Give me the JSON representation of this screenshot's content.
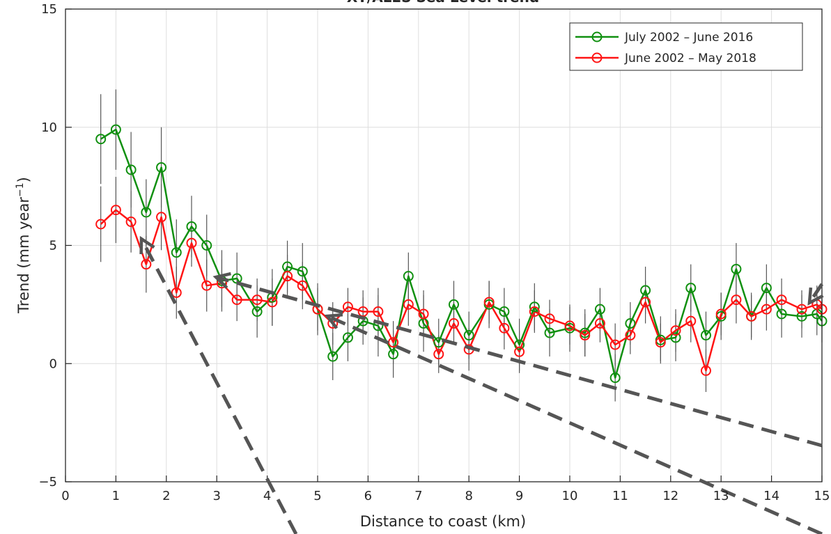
{
  "chart_data": {
    "type": "line",
    "title": "XT/ALES Sea Level trend",
    "xlabel": "Distance to coast (km)",
    "ylabel_main": "Trend (mm year",
    "ylabel_sup": "−1",
    "ylabel_close": ")",
    "xlim": [
      0,
      15
    ],
    "ylim": [
      -5,
      15
    ],
    "xticks": [
      0,
      1,
      2,
      3,
      4,
      5,
      6,
      7,
      8,
      9,
      10,
      11,
      12,
      13,
      14,
      15
    ],
    "yticks": [
      -5,
      0,
      5,
      10,
      15
    ],
    "grid": true,
    "legend_position": "top-right",
    "x": [
      0.7,
      1.0,
      1.3,
      1.6,
      1.9,
      2.2,
      2.5,
      2.8,
      3.1,
      3.4,
      3.8,
      4.1,
      4.4,
      4.7,
      5.0,
      5.3,
      5.6,
      5.9,
      6.2,
      6.5,
      6.8,
      7.1,
      7.4,
      7.7,
      8.0,
      8.4,
      8.7,
      9.0,
      9.3,
      9.6,
      10.0,
      10.3,
      10.6,
      10.9,
      11.2,
      11.5,
      11.8,
      12.1,
      12.4,
      12.7,
      13.0,
      13.3,
      13.6,
      13.9,
      14.2,
      14.6,
      14.9,
      15.0
    ],
    "series": [
      {
        "name": "July 2002 – June 2016",
        "color": "#109010",
        "values": [
          9.5,
          9.9,
          8.2,
          6.4,
          8.3,
          4.7,
          5.8,
          5.0,
          3.5,
          3.6,
          2.2,
          2.8,
          4.1,
          3.9,
          2.3,
          0.3,
          1.1,
          1.8,
          1.6,
          0.4,
          3.7,
          1.7,
          0.9,
          2.5,
          1.2,
          2.5,
          2.2,
          0.8,
          2.4,
          1.3,
          1.5,
          1.3,
          2.3,
          -0.6,
          1.7,
          3.1,
          1.0,
          1.1,
          3.2,
          1.2,
          2.0,
          4.0,
          2.0,
          3.2,
          2.1,
          2.0,
          2.1,
          1.8
        ],
        "errors": [
          1.9,
          1.7,
          1.6,
          1.4,
          1.7,
          1.4,
          1.3,
          1.3,
          1.3,
          1.1,
          1.1,
          1.2,
          1.1,
          1.2,
          1.1,
          1.0,
          1.0,
          1.0,
          1.3,
          1.0,
          1.0,
          1.2,
          1.0,
          1.0,
          1.0,
          1.0,
          1.0,
          1.1,
          1.0,
          1.0,
          1.0,
          1.0,
          0.9,
          1.0,
          0.9,
          1.0,
          1.0,
          1.0,
          1.0,
          1.0,
          1.0,
          1.1,
          1.0,
          1.0,
          1.0,
          0.9,
          0.9,
          0.9
        ]
      },
      {
        "name": "June 2002 – May 2018",
        "color": "#ff1414",
        "values": [
          5.9,
          6.5,
          6.0,
          4.2,
          6.2,
          3.0,
          5.1,
          3.3,
          3.4,
          2.7,
          2.7,
          2.6,
          3.7,
          3.3,
          2.3,
          1.7,
          2.4,
          2.2,
          2.2,
          0.9,
          2.5,
          2.1,
          0.4,
          1.7,
          0.6,
          2.6,
          1.5,
          0.5,
          2.2,
          1.9,
          1.6,
          1.2,
          1.7,
          0.8,
          1.2,
          2.6,
          0.9,
          1.4,
          1.8,
          -0.3,
          2.1,
          2.7,
          2.0,
          2.3,
          2.7,
          2.3,
          2.5,
          2.3
        ],
        "errors": [
          1.6,
          1.4,
          1.3,
          1.2,
          1.4,
          1.1,
          1.0,
          1.1,
          1.0,
          0.9,
          0.9,
          1.0,
          0.9,
          1.0,
          0.9,
          0.9,
          0.8,
          0.9,
          1.0,
          0.9,
          0.9,
          1.0,
          0.8,
          0.9,
          0.9,
          0.9,
          0.9,
          0.9,
          0.9,
          0.8,
          0.8,
          0.9,
          0.8,
          0.9,
          0.8,
          0.9,
          0.8,
          0.9,
          0.9,
          0.9,
          0.9,
          1.0,
          0.9,
          0.9,
          0.9,
          0.8,
          0.8,
          0.8
        ]
      }
    ]
  }
}
